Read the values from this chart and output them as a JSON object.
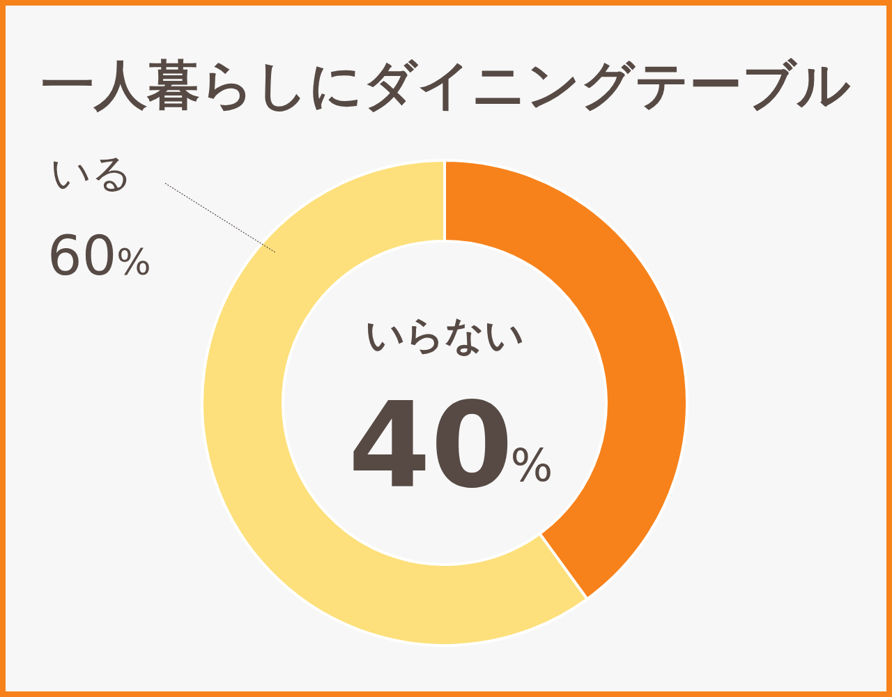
{
  "chart_data": {
    "type": "donut",
    "title": "一人暮らしにダイニングテーブル",
    "categories": [
      "いらない",
      "いる"
    ],
    "values": [
      40,
      60
    ],
    "value_labels": [
      "40%",
      "60%"
    ],
    "colors": [
      "#f7821b",
      "#fde07b"
    ]
  }
}
